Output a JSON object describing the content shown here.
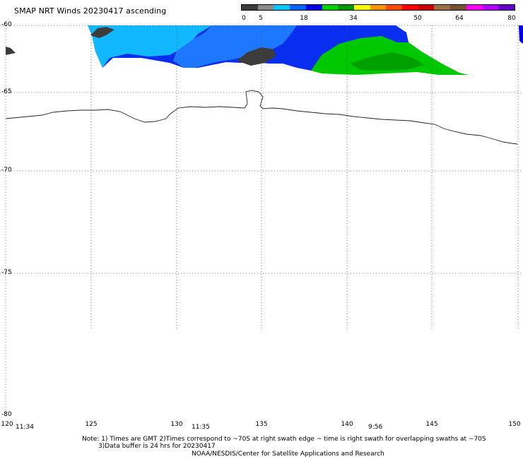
{
  "title": "SMAP NRT Winds 20230417 ascending",
  "colorbar": {
    "labels": [
      "0",
      "5",
      "18",
      "34",
      "50",
      "64",
      "80"
    ],
    "colors": [
      "#3c3c3c",
      "#8a8a8a",
      "#00c8ff",
      "#0064ff",
      "#0000e6",
      "#00d200",
      "#009600",
      "#ffff00",
      "#ff9600",
      "#ff4b00",
      "#ff0000",
      "#c80000",
      "#a06e46",
      "#785032",
      "#ff00ff",
      "#b400ff",
      "#6400c8"
    ]
  },
  "latitude_labels": [
    "-60",
    "-65",
    "-70",
    "-75",
    "-80"
  ],
  "longitude_labels": [
    "120",
    "125",
    "130",
    "135",
    "140",
    "145",
    "150"
  ],
  "time_labels": [
    "11:34",
    "11:35",
    "9:56"
  ],
  "notes": {
    "line1": "Note: 1) Times are GMT 2)Times correspond to ~70S at right swath edge ~ time is right swath for overlapping swaths at ~70S",
    "line2": "3)Data buffer is 24 hrs for 20230417",
    "line3": "NOAA/NESDIS/Center for Satellite Applications and Research"
  }
}
